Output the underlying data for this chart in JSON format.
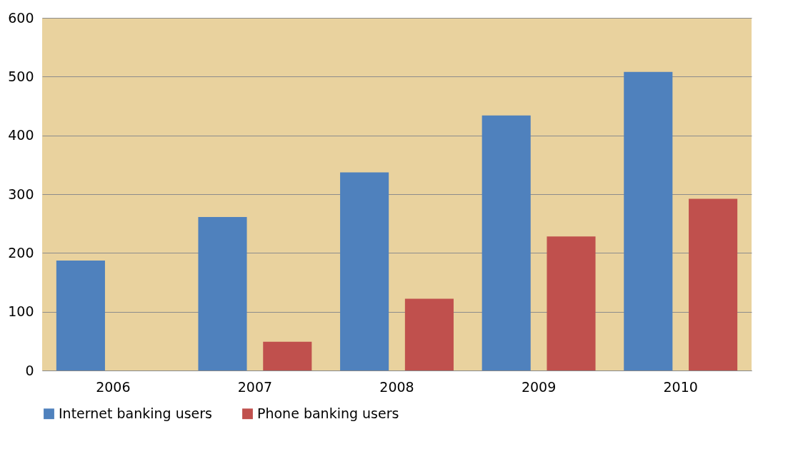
{
  "chart_data": {
    "type": "bar",
    "categories": [
      "2006",
      "2007",
      "2008",
      "2009",
      "2010"
    ],
    "series": [
      {
        "name": "Internet banking users",
        "color": "#4f81bd",
        "values": [
          187,
          261,
          337,
          434,
          508
        ]
      },
      {
        "name": "Phone banking users",
        "color": "#c0504d",
        "values": [
          null,
          49,
          122,
          228,
          292
        ]
      }
    ],
    "ylim": [
      0,
      600
    ],
    "yticks": [
      0,
      100,
      200,
      300,
      400,
      500,
      600
    ],
    "grid": "y",
    "legend": "bottom"
  }
}
